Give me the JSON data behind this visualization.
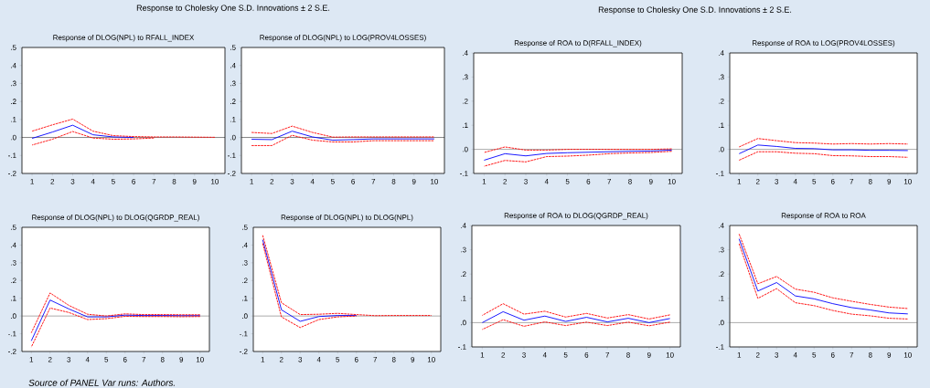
{
  "chart_data": [
    {
      "type": "line",
      "title": "Response of DLOG(NPL) to RFALL_INDEX",
      "annotations": [
        "Response to Cholesky One S.D. Innovations ± 2 S.E."
      ],
      "x": [
        1,
        2,
        3,
        4,
        5,
        6,
        7,
        8,
        9,
        10
      ],
      "xlim": [
        0.5,
        10.5
      ],
      "xticks": [
        1,
        2,
        3,
        4,
        5,
        6,
        7,
        8,
        9,
        10
      ],
      "ylim": [
        -0.2,
        0.5
      ],
      "yticks": [
        {
          "value": -0.2,
          "label": "-.2"
        },
        {
          "value": -0.1,
          "label": "-.1"
        },
        {
          "value": 0,
          "label": ".0"
        },
        {
          "value": 0.1,
          "label": ".1"
        },
        {
          "value": 0.2,
          "label": ".2"
        },
        {
          "value": 0.3,
          "label": ".3"
        },
        {
          "value": 0.4,
          "label": ".4"
        },
        {
          "value": 0.5,
          "label": ".5"
        }
      ],
      "ref_lines": [
        {
          "axis": "y",
          "value": 0,
          "color": "#000000"
        }
      ],
      "series": [
        {
          "color": "#ff0000",
          "line_style": "dashed",
          "values": [
            0.035,
            0.07,
            0.102,
            0.035,
            0.01,
            0.005,
            0.003,
            0.003,
            0.002,
            0.001
          ]
        },
        {
          "color": "#ff0000",
          "line_style": "dashed",
          "values": [
            -0.042,
            -0.01,
            0.033,
            -0.003,
            -0.01,
            -0.008,
            -0.003,
            null,
            null,
            null
          ]
        },
        {
          "color": "#0000ff",
          "line_style": "solid",
          "values": [
            -0.005,
            0.03,
            0.068,
            0.015,
            0.003,
            0.0,
            null,
            null,
            null,
            null
          ]
        }
      ]
    },
    {
      "type": "line",
      "title": "Response of DLOG(NPL) to LOG(PROV4LOSSES)",
      "x": [
        1,
        2,
        3,
        4,
        5,
        6,
        7,
        8,
        9,
        10
      ],
      "xlim": [
        0.5,
        10.5
      ],
      "xticks": [
        1,
        2,
        3,
        4,
        5,
        6,
        7,
        8,
        9,
        10
      ],
      "ylim": [
        -0.2,
        0.5
      ],
      "yticks": [
        {
          "value": -0.2,
          "label": "-.2"
        },
        {
          "value": -0.1,
          "label": "-.1"
        },
        {
          "value": 0,
          "label": ".0"
        },
        {
          "value": 0.1,
          "label": ".1"
        },
        {
          "value": 0.2,
          "label": ".2"
        },
        {
          "value": 0.3,
          "label": ".3"
        },
        {
          "value": 0.4,
          "label": ".4"
        },
        {
          "value": 0.5,
          "label": ".5"
        }
      ],
      "ref_lines": [
        {
          "axis": "y",
          "value": 0,
          "color": "#000000"
        }
      ],
      "series": [
        {
          "color": "#ff0000",
          "line_style": "dashed",
          "values": [
            0.028,
            0.022,
            0.063,
            0.028,
            0.002,
            0.003,
            0.003,
            0.003,
            0.003,
            0.003
          ]
        },
        {
          "color": "#ff0000",
          "line_style": "dashed",
          "values": [
            -0.045,
            -0.045,
            0.012,
            -0.015,
            -0.025,
            -0.025,
            -0.018,
            -0.018,
            -0.018,
            -0.018
          ]
        },
        {
          "color": "#0000ff",
          "line_style": "solid",
          "values": [
            -0.01,
            -0.012,
            0.035,
            0.003,
            -0.015,
            -0.012,
            -0.008,
            -0.008,
            -0.008,
            -0.008
          ]
        }
      ]
    },
    {
      "type": "line",
      "title": "Response of ROA to D(RFALL_INDEX)",
      "annotations": [
        "Response to Cholesky One S.D. Innovations ± 2 S.E."
      ],
      "x": [
        1,
        2,
        3,
        4,
        5,
        6,
        7,
        8,
        9,
        10
      ],
      "xlim": [
        0.5,
        10.5
      ],
      "xticks": [
        1,
        2,
        3,
        4,
        5,
        6,
        7,
        8,
        9,
        10
      ],
      "ylim": [
        -0.1,
        0.4
      ],
      "yticks": [
        {
          "value": -0.1,
          "label": "-.1"
        },
        {
          "value": 0,
          "label": ".0"
        },
        {
          "value": 0.1,
          "label": ".1"
        },
        {
          "value": 0.2,
          "label": ".2"
        },
        {
          "value": 0.3,
          "label": ".3"
        },
        {
          "value": 0.4,
          "label": ".4"
        }
      ],
      "ref_lines": [
        {
          "axis": "y",
          "value": 0,
          "color": "#555555"
        }
      ],
      "series": [
        {
          "color": "#ff0000",
          "line_style": "dashed",
          "values": [
            -0.013,
            0.01,
            -0.003,
            -0.003,
            0.0,
            0.0,
            0.0,
            0.0,
            0.0,
            0.002
          ]
        },
        {
          "color": "#ff0000",
          "line_style": "dashed",
          "values": [
            -0.07,
            -0.046,
            -0.052,
            -0.03,
            -0.028,
            -0.024,
            -0.018,
            -0.015,
            -0.013,
            -0.008
          ]
        },
        {
          "color": "#0000ff",
          "line_style": "solid",
          "values": [
            -0.045,
            -0.018,
            -0.027,
            -0.017,
            -0.014,
            -0.012,
            -0.01,
            -0.008,
            -0.007,
            -0.003
          ]
        }
      ]
    },
    {
      "type": "line",
      "title": "Response of ROA to LOG(PROV4LOSSES)",
      "x": [
        1,
        2,
        3,
        4,
        5,
        6,
        7,
        8,
        9,
        10
      ],
      "xlim": [
        0.5,
        10.5
      ],
      "xticks": [
        1,
        2,
        3,
        4,
        5,
        6,
        7,
        8,
        9,
        10
      ],
      "ylim": [
        -0.1,
        0.4
      ],
      "yticks": [
        {
          "value": -0.1,
          "label": "-.1"
        },
        {
          "value": 0,
          "label": ".0"
        },
        {
          "value": 0.1,
          "label": ".1"
        },
        {
          "value": 0.2,
          "label": ".2"
        },
        {
          "value": 0.3,
          "label": ".3"
        },
        {
          "value": 0.4,
          "label": ".4"
        }
      ],
      "ref_lines": [
        {
          "axis": "y",
          "value": 0,
          "color": "#555555"
        }
      ],
      "series": [
        {
          "color": "#ff0000",
          "line_style": "dashed",
          "values": [
            0.01,
            0.045,
            0.036,
            0.028,
            0.026,
            0.022,
            0.024,
            0.022,
            0.024,
            0.022
          ]
        },
        {
          "color": "#ff0000",
          "line_style": "dashed",
          "values": [
            -0.045,
            -0.01,
            -0.01,
            -0.016,
            -0.018,
            -0.026,
            -0.027,
            -0.03,
            -0.03,
            -0.033
          ]
        },
        {
          "color": "#0000ff",
          "line_style": "solid",
          "values": [
            -0.018,
            0.018,
            0.012,
            0.004,
            0.003,
            -0.002,
            -0.002,
            -0.004,
            -0.004,
            -0.005
          ]
        }
      ]
    },
    {
      "type": "line",
      "title": "Response of DLOG(NPL) to DLOG(QGRDP_REAL)",
      "annotations": [
        "*Source of PANEL Var runs:  Authors.*"
      ],
      "x": [
        1,
        2,
        3,
        4,
        5,
        6,
        7,
        8,
        9,
        10
      ],
      "xlim": [
        0.5,
        10.5
      ],
      "xticks": [
        1,
        2,
        3,
        4,
        5,
        6,
        7,
        8,
        9,
        10
      ],
      "ylim": [
        -0.2,
        0.5
      ],
      "yticks": [
        {
          "value": -0.2,
          "label": "-.2"
        },
        {
          "value": -0.1,
          "label": "-.1"
        },
        {
          "value": 0,
          "label": ".0"
        },
        {
          "value": 0.1,
          "label": ".1"
        },
        {
          "value": 0.2,
          "label": ".2"
        },
        {
          "value": 0.3,
          "label": ".3"
        },
        {
          "value": 0.4,
          "label": ".4"
        },
        {
          "value": 0.5,
          "label": ".5"
        }
      ],
      "ref_lines": [
        {
          "axis": "y",
          "value": 0,
          "color": "#555555"
        }
      ],
      "series": [
        {
          "color": "#ff0000",
          "line_style": "dashed",
          "values": [
            -0.095,
            0.13,
            0.06,
            0.01,
            0.0,
            0.012,
            0.008,
            0.008,
            0.007,
            0.007
          ]
        },
        {
          "color": "#ff0000",
          "line_style": "dashed",
          "values": [
            -0.175,
            0.045,
            0.02,
            -0.02,
            -0.015,
            -0.002,
            -0.003,
            -0.003,
            -0.004,
            -0.003
          ]
        },
        {
          "color": "#0000ff",
          "line_style": "solid",
          "values": [
            -0.14,
            0.09,
            0.04,
            -0.005,
            -0.005,
            0.005,
            0.003,
            0.003,
            0.002,
            0.002
          ]
        }
      ]
    },
    {
      "type": "line",
      "title": "Response of DLOG(NPL) to DLOG(NPL)",
      "x": [
        1,
        2,
        3,
        4,
        5,
        6,
        7,
        8,
        9,
        10
      ],
      "xlim": [
        0.5,
        10.5
      ],
      "xticks": [
        1,
        2,
        3,
        4,
        5,
        6,
        7,
        8,
        9,
        10
      ],
      "ylim": [
        -0.2,
        0.5
      ],
      "yticks": [
        {
          "value": -0.2,
          "label": "-.2"
        },
        {
          "value": -0.1,
          "label": "-.1"
        },
        {
          "value": 0,
          "label": ".0"
        },
        {
          "value": 0.1,
          "label": ".1"
        },
        {
          "value": 0.2,
          "label": ".2"
        },
        {
          "value": 0.3,
          "label": ".3"
        },
        {
          "value": 0.4,
          "label": ".4"
        },
        {
          "value": 0.5,
          "label": ".5"
        }
      ],
      "ref_lines": [
        {
          "axis": "y",
          "value": 0,
          "color": "#555555"
        }
      ],
      "series": [
        {
          "color": "#ff0000",
          "line_style": "dashed",
          "values": [
            0.455,
            0.075,
            0.008,
            0.01,
            0.015,
            0.008,
            0.002,
            0.003,
            0.003,
            0.003
          ]
        },
        {
          "color": "#ff0000",
          "line_style": "dashed",
          "values": [
            0.41,
            -0.005,
            -0.065,
            -0.02,
            -0.005,
            0.0,
            null,
            null,
            null,
            null
          ]
        },
        {
          "color": "#0000ff",
          "line_style": "solid",
          "values": [
            0.43,
            0.035,
            -0.03,
            -0.003,
            0.003,
            0.003,
            null,
            null,
            null,
            null
          ]
        }
      ]
    },
    {
      "type": "line",
      "title": "Response of ROA to DLOG(QGRDP_REAL)",
      "x": [
        1,
        2,
        3,
        4,
        5,
        6,
        7,
        8,
        9,
        10
      ],
      "xlim": [
        0.5,
        10.5
      ],
      "xticks": [
        1,
        2,
        3,
        4,
        5,
        6,
        7,
        8,
        9,
        10
      ],
      "ylim": [
        -0.1,
        0.4
      ],
      "yticks": [
        {
          "value": -0.1,
          "label": "-.1"
        },
        {
          "value": 0,
          "label": ".0"
        },
        {
          "value": 0.1,
          "label": ".1"
        },
        {
          "value": 0.2,
          "label": ".2"
        },
        {
          "value": 0.3,
          "label": ".3"
        },
        {
          "value": 0.4,
          "label": ".4"
        }
      ],
      "ref_lines": [
        {
          "axis": "y",
          "value": 0,
          "color": "#555555"
        }
      ],
      "series": [
        {
          "color": "#ff0000",
          "line_style": "dashed",
          "values": [
            0.03,
            0.078,
            0.035,
            0.047,
            0.023,
            0.038,
            0.019,
            0.033,
            0.015,
            0.032
          ]
        },
        {
          "color": "#ff0000",
          "line_style": "dashed",
          "values": [
            -0.028,
            0.012,
            -0.015,
            0.003,
            -0.012,
            0.002,
            -0.012,
            0.002,
            -0.013,
            0.002
          ]
        },
        {
          "color": "#0000ff",
          "line_style": "solid",
          "values": [
            0.0,
            0.045,
            0.01,
            0.027,
            0.005,
            0.022,
            0.003,
            0.018,
            0.0,
            0.017
          ]
        }
      ]
    },
    {
      "type": "line",
      "title": "Response of ROA to ROA",
      "x": [
        1,
        2,
        3,
        4,
        5,
        6,
        7,
        8,
        9,
        10
      ],
      "xlim": [
        0.5,
        10.5
      ],
      "xticks": [
        1,
        2,
        3,
        4,
        5,
        6,
        7,
        8,
        9,
        10
      ],
      "ylim": [
        -0.1,
        0.4
      ],
      "yticks": [
        {
          "value": -0.1,
          "label": "-.1"
        },
        {
          "value": 0,
          "label": ".0"
        },
        {
          "value": 0.1,
          "label": ".1"
        },
        {
          "value": 0.2,
          "label": ".2"
        },
        {
          "value": 0.3,
          "label": ".3"
        },
        {
          "value": 0.4,
          "label": ".4"
        }
      ],
      "ref_lines": [
        {
          "axis": "y",
          "value": 0,
          "color": "#555555"
        }
      ],
      "series": [
        {
          "color": "#ff0000",
          "line_style": "dashed",
          "values": [
            0.365,
            0.16,
            0.19,
            0.138,
            0.125,
            0.102,
            0.088,
            0.075,
            0.064,
            0.058
          ]
        },
        {
          "color": "#ff0000",
          "line_style": "dashed",
          "values": [
            0.325,
            0.1,
            0.14,
            0.082,
            0.07,
            0.05,
            0.035,
            0.028,
            0.018,
            0.015
          ]
        },
        {
          "color": "#0000ff",
          "line_style": "solid",
          "values": [
            0.345,
            0.13,
            0.165,
            0.11,
            0.098,
            0.078,
            0.062,
            0.052,
            0.04,
            0.036
          ]
        }
      ]
    }
  ]
}
